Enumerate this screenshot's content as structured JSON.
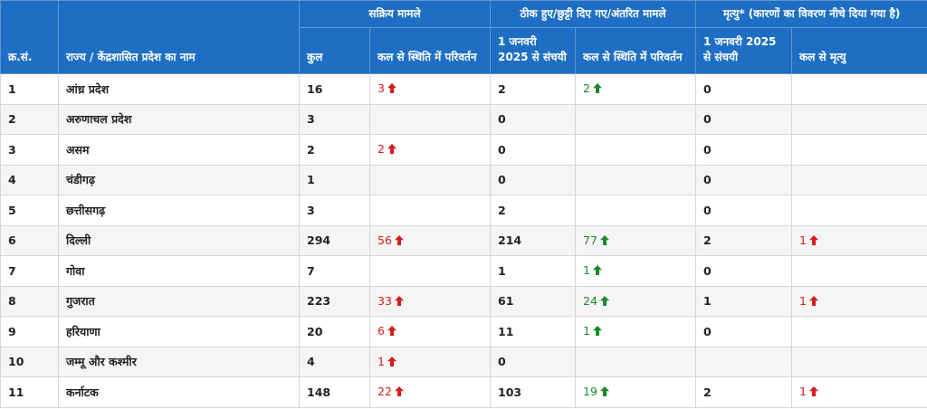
{
  "headers": {
    "sn": "क्र.सं.",
    "state": "राज्य / केंद्रशासित प्रदेश का नाम",
    "active_group": "सक्रिय मामले",
    "recovered_group": "ठीक हुए/छुट्टी दिए गए/अंतरित मामले",
    "deaths_group": "मृत्यु* (कारणों का विवरण नीचे दिया गया है)",
    "active_total": "कुल",
    "active_change": "कल से स्थिति में परिवर्तन",
    "recovered_cumulative": "1 जनवरी 2025 से संचयी",
    "recovered_change": "कल से स्थिति में परिवर्तन",
    "deaths_cumulative": "1 जनवरी 2025 से संचयी",
    "deaths_change": "कल से मृत्यु"
  },
  "colors": {
    "header_bg": "#1e6fc3",
    "increase_red": "#d51d1d",
    "increase_green": "#1b8a2c"
  },
  "arrow_icon": "arrow-up-icon",
  "rows": [
    {
      "sn": "1",
      "state": "आंध्र प्रदेश",
      "active": "16",
      "active_change": "3",
      "recovered": "2",
      "recovered_change": "2",
      "deaths": "0",
      "deaths_change": ""
    },
    {
      "sn": "2",
      "state": "अरुणाचल प्रदेश",
      "active": "3",
      "active_change": "",
      "recovered": "0",
      "recovered_change": "",
      "deaths": "0",
      "deaths_change": ""
    },
    {
      "sn": "3",
      "state": "असम",
      "active": "2",
      "active_change": "2",
      "recovered": "0",
      "recovered_change": "",
      "deaths": "0",
      "deaths_change": ""
    },
    {
      "sn": "4",
      "state": "चंडीगढ़",
      "active": "1",
      "active_change": "",
      "recovered": "0",
      "recovered_change": "",
      "deaths": "0",
      "deaths_change": ""
    },
    {
      "sn": "5",
      "state": "छत्तीसगढ़",
      "active": "3",
      "active_change": "",
      "recovered": "2",
      "recovered_change": "",
      "deaths": "0",
      "deaths_change": ""
    },
    {
      "sn": "6",
      "state": "दिल्ली",
      "active": "294",
      "active_change": "56",
      "recovered": "214",
      "recovered_change": "77",
      "deaths": "2",
      "deaths_change": "1"
    },
    {
      "sn": "7",
      "state": "गोवा",
      "active": "7",
      "active_change": "",
      "recovered": "1",
      "recovered_change": "1",
      "deaths": "0",
      "deaths_change": ""
    },
    {
      "sn": "8",
      "state": "गुजरात",
      "active": "223",
      "active_change": "33",
      "recovered": "61",
      "recovered_change": "24",
      "deaths": "1",
      "deaths_change": "1"
    },
    {
      "sn": "9",
      "state": "हरियाणा",
      "active": "20",
      "active_change": "6",
      "recovered": "11",
      "recovered_change": "1",
      "deaths": "0",
      "deaths_change": ""
    },
    {
      "sn": "10",
      "state": "जम्मू और कश्मीर",
      "active": "4",
      "active_change": "1",
      "recovered": "0",
      "recovered_change": "",
      "deaths": "",
      "deaths_change": ""
    },
    {
      "sn": "11",
      "state": "कर्नाटक",
      "active": "148",
      "active_change": "22",
      "recovered": "103",
      "recovered_change": "19",
      "deaths": "2",
      "deaths_change": "1"
    }
  ]
}
